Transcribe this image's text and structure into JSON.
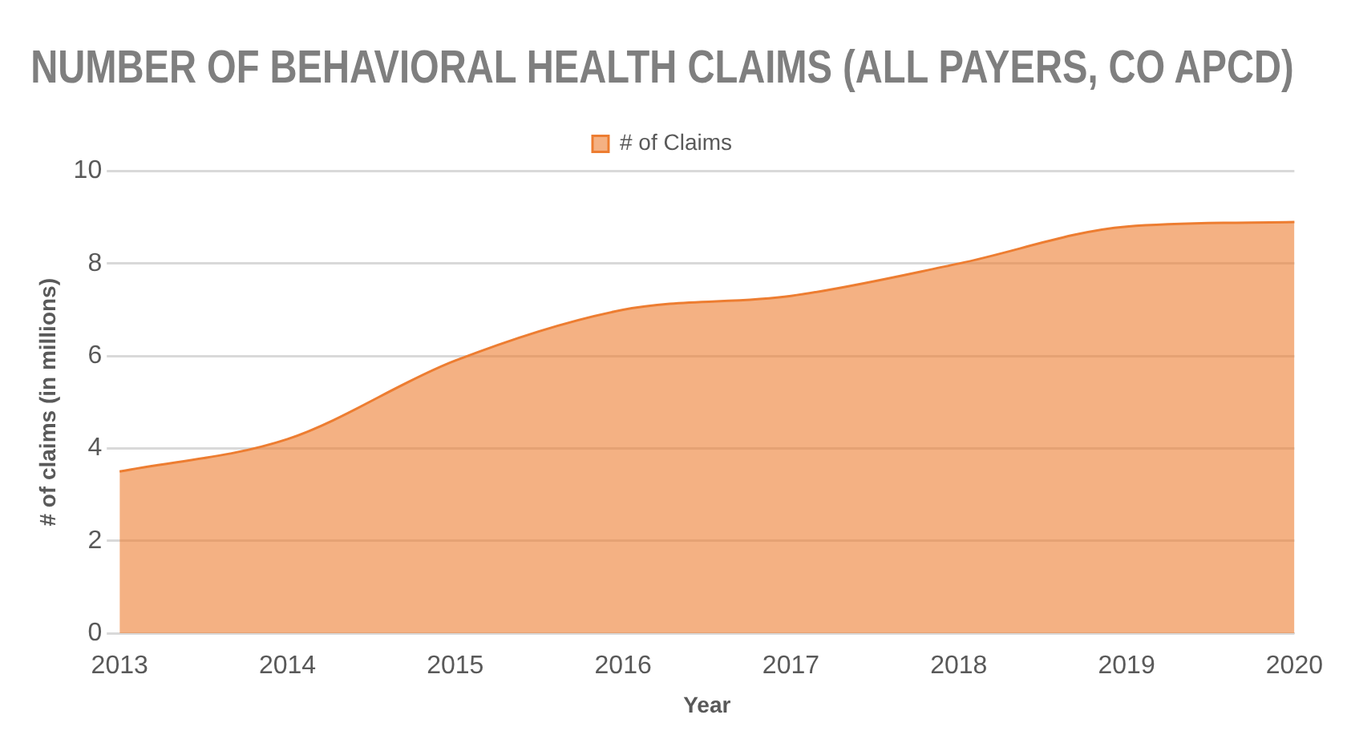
{
  "chart_data": {
    "type": "area",
    "title": "NUMBER OF BEHAVIORAL HEALTH CLAIMS (ALL PAYERS, CO APCD)",
    "xlabel": "Year",
    "ylabel": "# of claims (in millions)",
    "categories": [
      "2013",
      "2014",
      "2015",
      "2016",
      "2017",
      "2018",
      "2019",
      "2020"
    ],
    "series": [
      {
        "name": "# of Claims",
        "color": "#ed7d31",
        "values": [
          3.5,
          4.2,
          5.9,
          7.0,
          7.3,
          8.0,
          8.8,
          8.9
        ]
      }
    ],
    "ylim": [
      0,
      10
    ],
    "yticks": [
      0,
      2,
      4,
      6,
      8,
      10
    ],
    "grid": "y",
    "legend": "top"
  }
}
